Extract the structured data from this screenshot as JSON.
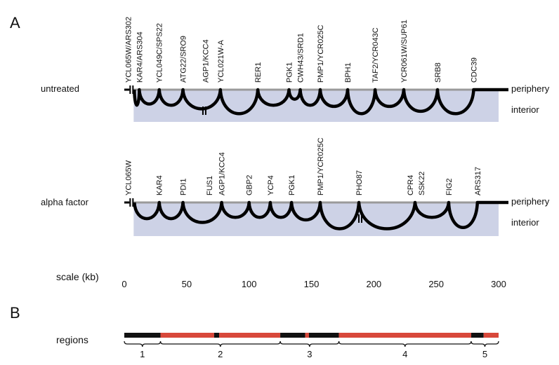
{
  "panels": {
    "a": "A",
    "b": "B"
  },
  "scale": {
    "label": "scale (kb)",
    "ticks": [
      0,
      50,
      100,
      150,
      200,
      250,
      300
    ]
  },
  "tracks": [
    {
      "id": "untreated",
      "condition": "untreated",
      "periphery_label": "periphery",
      "interior_label": "interior",
      "break_kb": [
        3,
        63
      ],
      "genes": [
        {
          "name": "YCL065W/ARS302",
          "kb": 3
        },
        {
          "name": "KAR4/ARS304",
          "kb": 12
        },
        {
          "name": "YCL049C/SPS22",
          "kb": 28
        },
        {
          "name": "ATG22/SRO9",
          "kb": 47
        },
        {
          "name": "AGP1/KCC4",
          "kb": 65
        },
        {
          "name": "YCL021W-A",
          "kb": 77
        },
        {
          "name": "RER1",
          "kb": 107
        },
        {
          "name": "PGK1",
          "kb": 132
        },
        {
          "name": "CWH43/SRD1",
          "kb": 141
        },
        {
          "name": "PMP1/YCR025C",
          "kb": 157
        },
        {
          "name": "BPH1",
          "kb": 179
        },
        {
          "name": "TAF2/YCR043C",
          "kb": 201
        },
        {
          "name": "YCR061W/SUP61",
          "kb": 224
        },
        {
          "name": "SRB8",
          "kb": 251
        },
        {
          "name": "CDC39",
          "kb": 280
        }
      ],
      "anchors_kb": [
        12,
        28,
        47,
        77,
        107,
        132,
        141,
        157,
        179,
        201,
        224,
        251,
        280
      ],
      "dips": [
        0.6,
        0.55,
        0.6,
        0.75,
        0.95,
        0.6,
        0.35,
        0.6,
        0.65,
        0.95,
        0.65,
        0.85,
        0.95
      ],
      "end_kb": 300
    },
    {
      "id": "alpha",
      "condition": "alpha factor",
      "periphery_label": "periphery",
      "interior_label": "interior",
      "break_kb": [
        3,
        188
      ],
      "genes": [
        {
          "name": "YCL065W",
          "kb": 3
        },
        {
          "name": "KAR4",
          "kb": 28
        },
        {
          "name": "PDI1",
          "kb": 47
        },
        {
          "name": "FUS1",
          "kb": 68
        },
        {
          "name": "AGP1/KCC4",
          "kb": 78
        },
        {
          "name": "GBP2",
          "kb": 100
        },
        {
          "name": "YCP4",
          "kb": 117
        },
        {
          "name": "PGK1",
          "kb": 134
        },
        {
          "name": "PMP1/YCR025C",
          "kb": 157
        },
        {
          "name": "PHO87",
          "kb": 188
        },
        {
          "name": "CPR4",
          "kb": 229
        },
        {
          "name": "SSK22",
          "kb": 238
        },
        {
          "name": "FIG2",
          "kb": 260
        },
        {
          "name": "ARS317",
          "kb": 283
        }
      ],
      "anchors_kb": [
        28,
        47,
        78,
        100,
        117,
        134,
        157,
        188,
        233,
        260,
        283
      ],
      "dips": [
        0.6,
        0.6,
        0.75,
        0.55,
        0.55,
        0.55,
        0.65,
        1.0,
        1.0,
        0.55,
        0.95
      ],
      "end_kb": 300
    }
  ],
  "regions": {
    "label": "regions",
    "segments": [
      {
        "from_kb": 0,
        "to_kb": 29,
        "color": "#111111"
      },
      {
        "from_kb": 29,
        "to_kb": 72,
        "color": "#d8483a"
      },
      {
        "from_kb": 72,
        "to_kb": 76,
        "color": "#111111"
      },
      {
        "from_kb": 76,
        "to_kb": 125,
        "color": "#d8483a"
      },
      {
        "from_kb": 125,
        "to_kb": 145,
        "color": "#111111"
      },
      {
        "from_kb": 145,
        "to_kb": 148,
        "color": "#d8483a"
      },
      {
        "from_kb": 148,
        "to_kb": 172,
        "color": "#111111"
      },
      {
        "from_kb": 172,
        "to_kb": 278,
        "color": "#d8483a"
      },
      {
        "from_kb": 278,
        "to_kb": 288,
        "color": "#111111"
      },
      {
        "from_kb": 288,
        "to_kb": 300,
        "color": "#d8483a"
      }
    ],
    "braces": [
      {
        "label": "1",
        "from_kb": 0,
        "to_kb": 29
      },
      {
        "label": "2",
        "from_kb": 29,
        "to_kb": 125
      },
      {
        "label": "3",
        "from_kb": 125,
        "to_kb": 172
      },
      {
        "label": "4",
        "from_kb": 172,
        "to_kb": 278
      },
      {
        "label": "5",
        "from_kb": 278,
        "to_kb": 300
      }
    ]
  },
  "colors": {
    "band": "#cdd2e6",
    "line": "#000000",
    "periphery_line": "#9a9a9a"
  }
}
